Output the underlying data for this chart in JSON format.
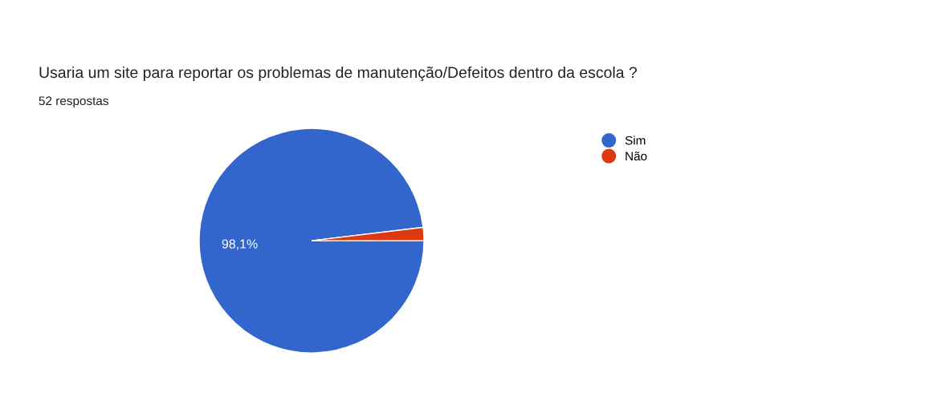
{
  "chart_data": {
    "type": "pie",
    "title": "Usaria um site para reportar os problemas de manutenção/Defeitos dentro da escola ?",
    "subtitle": "52 respostas",
    "categories": [
      "Sim",
      "Não"
    ],
    "values": [
      98.1,
      1.9
    ],
    "colors": [
      "#3366cc",
      "#dc3912"
    ],
    "value_labels": [
      "98,1%",
      null
    ],
    "legend": "right"
  }
}
